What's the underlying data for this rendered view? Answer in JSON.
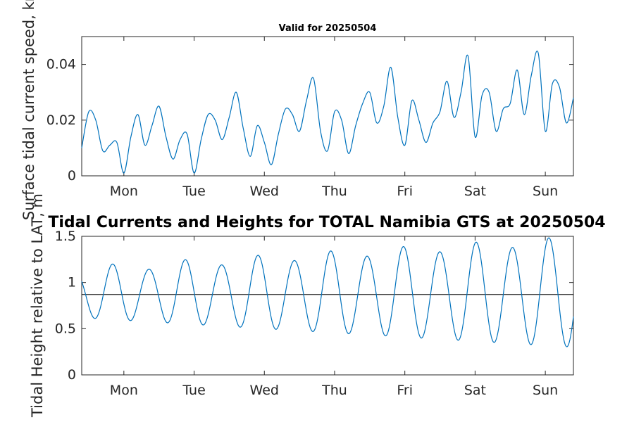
{
  "chart_data": [
    {
      "type": "line",
      "title": "Valid for 20250504",
      "ylabel": "Surface tidal current speed, kn",
      "xlabel": "",
      "ylim": [
        0,
        0.05
      ],
      "yticks": [
        {
          "value": 0,
          "label": "0"
        },
        {
          "value": 0.02,
          "label": "0.02"
        },
        {
          "value": 0.04,
          "label": "0.04"
        }
      ],
      "xlim": [
        -0.6,
        6.4
      ],
      "xticks": [
        {
          "value": 0,
          "label": "Mon"
        },
        {
          "value": 1,
          "label": "Tue"
        },
        {
          "value": 2,
          "label": "Wed"
        },
        {
          "value": 3,
          "label": "Thu"
        },
        {
          "value": 4,
          "label": "Fri"
        },
        {
          "value": 5,
          "label": "Sat"
        },
        {
          "value": 6,
          "label": "Sun"
        }
      ],
      "x_unit": "days",
      "series": [
        {
          "color": "#0072bd",
          "x": [
            -0.6,
            -0.5,
            -0.4,
            -0.3,
            -0.2,
            -0.1,
            0.0,
            0.1,
            0.2,
            0.3,
            0.4,
            0.5,
            0.6,
            0.7,
            0.8,
            0.9,
            1.0,
            1.1,
            1.2,
            1.3,
            1.4,
            1.5,
            1.6,
            1.7,
            1.8,
            1.9,
            2.0,
            2.1,
            2.2,
            2.3,
            2.4,
            2.5,
            2.6,
            2.7,
            2.8,
            2.9,
            3.0,
            3.1,
            3.2,
            3.3,
            3.4,
            3.5,
            3.6,
            3.7,
            3.8,
            3.9,
            4.0,
            4.1,
            4.2,
            4.3,
            4.4,
            4.5,
            4.6,
            4.7,
            4.8,
            4.9,
            5.0,
            5.1,
            5.2,
            5.3,
            5.4,
            5.5,
            5.6,
            5.7,
            5.8,
            5.9,
            6.0,
            6.1,
            6.2,
            6.3,
            6.4
          ],
          "values": [
            0.01,
            0.023,
            0.02,
            0.009,
            0.011,
            0.012,
            0.001,
            0.014,
            0.022,
            0.011,
            0.018,
            0.025,
            0.014,
            0.006,
            0.013,
            0.015,
            0.001,
            0.013,
            0.022,
            0.02,
            0.013,
            0.021,
            0.03,
            0.017,
            0.007,
            0.018,
            0.012,
            0.004,
            0.015,
            0.024,
            0.022,
            0.016,
            0.027,
            0.035,
            0.016,
            0.009,
            0.023,
            0.02,
            0.008,
            0.018,
            0.026,
            0.03,
            0.019,
            0.025,
            0.039,
            0.021,
            0.011,
            0.027,
            0.02,
            0.012,
            0.019,
            0.023,
            0.034,
            0.021,
            0.03,
            0.043,
            0.014,
            0.029,
            0.03,
            0.016,
            0.024,
            0.026,
            0.038,
            0.022,
            0.036,
            0.044,
            0.016,
            0.033,
            0.032,
            0.019,
            0.028
          ]
        }
      ]
    },
    {
      "type": "line",
      "title": "Tidal Currents and Heights for TOTAL Namibia GTS at 20250504",
      "ylabel": "Tidal Height relative to LAT, m",
      "xlabel": "",
      "ylim": [
        0,
        1.5
      ],
      "yticks": [
        {
          "value": 0,
          "label": "0"
        },
        {
          "value": 0.5,
          "label": "0.5"
        },
        {
          "value": 1,
          "label": "1"
        },
        {
          "value": 1.5,
          "label": "1.5"
        }
      ],
      "xlim": [
        -0.6,
        6.4
      ],
      "xticks": [
        {
          "value": 0,
          "label": "Mon"
        },
        {
          "value": 1,
          "label": "Tue"
        },
        {
          "value": 2,
          "label": "Wed"
        },
        {
          "value": 3,
          "label": "Thu"
        },
        {
          "value": 4,
          "label": "Fri"
        },
        {
          "value": 5,
          "label": "Sat"
        },
        {
          "value": 6,
          "label": "Sun"
        }
      ],
      "reference_line": 0.87,
      "series": [
        {
          "color": "#0072bd",
          "model": "tide",
          "mean": 0.88,
          "period_days": 0.5175,
          "high_time_days": -0.16,
          "amplitude_start": 0.26,
          "amplitude_end": 0.58,
          "amplitude_diurnal_mod": 0.04
        }
      ]
    }
  ]
}
